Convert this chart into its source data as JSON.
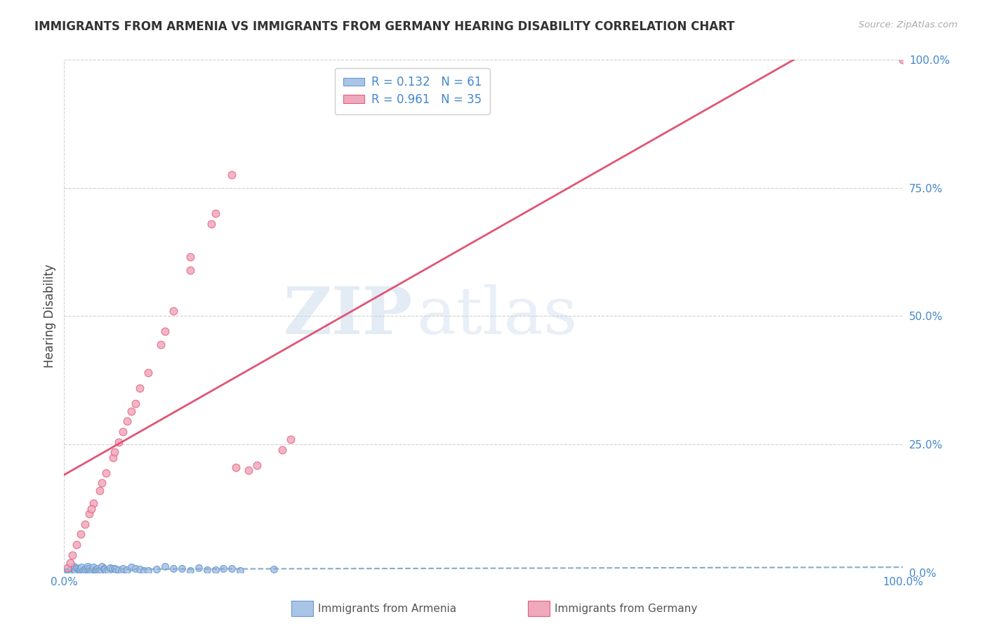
{
  "title": "IMMIGRANTS FROM ARMENIA VS IMMIGRANTS FROM GERMANY HEARING DISABILITY CORRELATION CHART",
  "source": "Source: ZipAtlas.com",
  "ylabel": "Hearing Disability",
  "watermark_zip": "ZIP",
  "watermark_atlas": "atlas",
  "legend_labels": [
    "Immigrants from Armenia",
    "Immigrants from Germany"
  ],
  "armenia_fill": "#aac4e8",
  "armenia_edge": "#6699cc",
  "germany_fill": "#f0a8bc",
  "germany_edge": "#e06080",
  "armenia_line_color": "#88aacc",
  "germany_line_color": "#e05575",
  "R_armenia": 0.132,
  "N_armenia": 61,
  "R_germany": 0.961,
  "N_germany": 35,
  "xlim": [
    0,
    100
  ],
  "ylim": [
    0,
    100
  ],
  "yticks": [
    0,
    25,
    50,
    75,
    100
  ],
  "ytick_labels": [
    "0.0%",
    "25.0%",
    "50.0%",
    "75.0%",
    "100.0%"
  ],
  "background_color": "#ffffff",
  "grid_color": "#cccccc",
  "title_color": "#333333",
  "axis_tick_color": "#4488cc",
  "arm_x": [
    0.3,
    0.5,
    0.6,
    0.8,
    0.9,
    1.0,
    1.1,
    1.2,
    1.3,
    1.5,
    1.6,
    1.8,
    1.9,
    2.0,
    2.1,
    2.2,
    2.4,
    2.5,
    2.7,
    2.8,
    3.0,
    3.1,
    3.2,
    3.4,
    3.5,
    3.7,
    3.8,
    4.0,
    4.1,
    4.2,
    4.4,
    4.5,
    4.7,
    4.8,
    5.0,
    5.2,
    5.5,
    5.7,
    6.0,
    6.2,
    6.5,
    6.8,
    7.0,
    7.5,
    8.0,
    8.5,
    9.0,
    9.5,
    10.0,
    11.0,
    12.0,
    13.0,
    14.0,
    15.0,
    16.0,
    17.0,
    18.0,
    19.0,
    20.0,
    21.0,
    25.0
  ],
  "arm_y": [
    0.2,
    0.5,
    0.3,
    0.4,
    0.5,
    0.8,
    1.3,
    0.4,
    0.4,
    1.0,
    0.8,
    0.6,
    0.6,
    0.9,
    1.1,
    0.5,
    0.3,
    0.7,
    0.9,
    1.2,
    0.8,
    0.5,
    0.4,
    0.7,
    1.1,
    0.6,
    0.6,
    0.9,
    0.4,
    0.5,
    0.6,
    1.3,
    0.8,
    0.7,
    0.4,
    0.5,
    1.0,
    0.9,
    0.8,
    0.7,
    0.6,
    0.4,
    0.9,
    0.6,
    1.1,
    0.8,
    0.7,
    0.5,
    0.5,
    0.7,
    1.2,
    0.9,
    0.8,
    0.4,
    1.0,
    0.6,
    0.6,
    0.8,
    0.9,
    0.5,
    0.7
  ],
  "ger_x": [
    0.4,
    0.7,
    1.0,
    1.5,
    2.0,
    2.5,
    3.0,
    3.5,
    4.2,
    5.0,
    5.8,
    6.5,
    7.5,
    8.5,
    10.0,
    11.5,
    13.0,
    15.0,
    17.5,
    20.0,
    23.0,
    15.0,
    26.0,
    27.0,
    9.0,
    18.0,
    6.0,
    12.0,
    4.5,
    7.0,
    20.5,
    3.2,
    8.0,
    22.0,
    100.0
  ],
  "ger_y": [
    1.0,
    2.0,
    3.5,
    5.5,
    7.5,
    9.5,
    11.5,
    13.5,
    16.0,
    19.5,
    22.5,
    25.5,
    29.5,
    33.0,
    39.0,
    44.5,
    51.0,
    59.0,
    68.0,
    77.5,
    21.0,
    61.5,
    24.0,
    26.0,
    36.0,
    70.0,
    23.5,
    47.0,
    17.5,
    27.5,
    20.5,
    12.5,
    31.5,
    20.0,
    100.0
  ]
}
